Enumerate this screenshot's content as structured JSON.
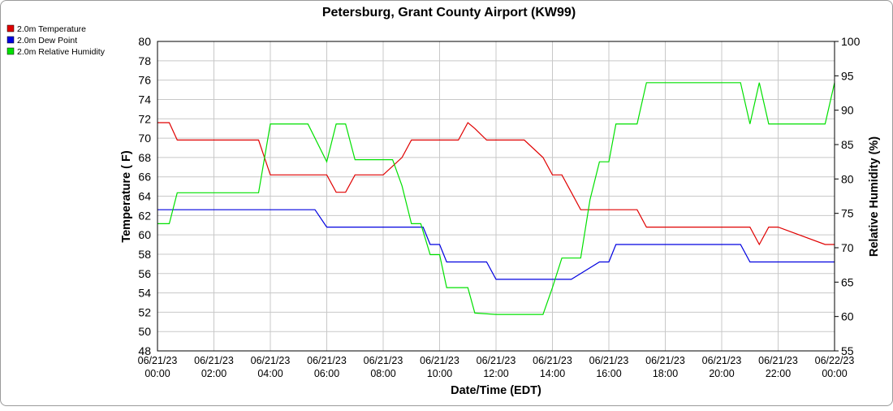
{
  "chart_data": {
    "type": "line",
    "title": "Petersburg, Grant County Airport (KW99)",
    "xlabel": "Date/Time (EDT)",
    "ylabel": "Temperature ( F)",
    "y2label": "Relative Humidity (%)",
    "ylim": [
      48,
      80
    ],
    "y2lim": [
      55,
      100
    ],
    "xlim": [
      "06/21/23 00:00",
      "06/22/23 00:00"
    ],
    "grid": true,
    "legend_position": "top-left",
    "y_ticks": [
      "48",
      "50",
      "52",
      "54",
      "56",
      "58",
      "60",
      "62",
      "64",
      "66",
      "68",
      "70",
      "72",
      "74",
      "76",
      "78",
      "80"
    ],
    "y2_ticks": [
      "55",
      "60",
      "65",
      "70",
      "75",
      "80",
      "85",
      "90",
      "95",
      "100"
    ],
    "x_ticks": [
      {
        "date": "06/21/23",
        "time": "00:00"
      },
      {
        "date": "06/21/23",
        "time": "02:00"
      },
      {
        "date": "06/21/23",
        "time": "04:00"
      },
      {
        "date": "06/21/23",
        "time": "06:00"
      },
      {
        "date": "06/21/23",
        "time": "08:00"
      },
      {
        "date": "06/21/23",
        "time": "10:00"
      },
      {
        "date": "06/21/23",
        "time": "12:00"
      },
      {
        "date": "06/21/23",
        "time": "14:00"
      },
      {
        "date": "06/21/23",
        "time": "16:00"
      },
      {
        "date": "06/21/23",
        "time": "18:00"
      },
      {
        "date": "06/21/23",
        "time": "20:00"
      },
      {
        "date": "06/21/23",
        "time": "22:00"
      },
      {
        "date": "06/22/23",
        "time": "00:00"
      }
    ],
    "series": [
      {
        "name": "2.0m Temperature",
        "color": "#e00000",
        "axis": "left",
        "x": [
          "06/21/23 00:00",
          "06/21/23 00:25",
          "06/21/23 00:42",
          "06/21/23 03:35",
          "06/21/23 04:00",
          "06/21/23 06:00",
          "06/21/23 06:20",
          "06/21/23 06:40",
          "06/21/23 07:00",
          "06/21/23 07:40",
          "06/21/23 08:00",
          "06/21/23 08:40",
          "06/21/23 09:00",
          "06/21/23 10:00",
          "06/21/23 10:40",
          "06/21/23 11:00",
          "06/21/23 11:15",
          "06/21/23 11:40",
          "06/21/23 12:00",
          "06/21/23 13:00",
          "06/21/23 13:40",
          "06/21/23 14:00",
          "06/21/23 14:20",
          "06/21/23 14:40",
          "06/21/23 15:00",
          "06/21/23 15:40",
          "06/21/23 16:00",
          "06/21/23 17:00",
          "06/21/23 17:20",
          "06/21/23 18:00",
          "06/21/23 20:00",
          "06/21/23 21:00",
          "06/21/23 21:20",
          "06/21/23 21:40",
          "06/21/23 22:00",
          "06/21/23 23:40",
          "06/22/23 00:00"
        ],
        "values": [
          71.6,
          71.6,
          69.8,
          69.8,
          66.2,
          66.2,
          64.4,
          64.4,
          66.2,
          66.2,
          66.2,
          68.0,
          69.8,
          69.8,
          69.8,
          71.6,
          71.0,
          69.8,
          69.8,
          69.8,
          68.0,
          66.2,
          66.2,
          64.4,
          62.6,
          62.6,
          62.6,
          62.6,
          60.8,
          60.8,
          60.8,
          60.8,
          59.0,
          60.8,
          60.8,
          59.0,
          59.0
        ]
      },
      {
        "name": "2.0m Dew Point",
        "color": "#0000e0",
        "axis": "left",
        "x": [
          "06/21/23 00:00",
          "06/21/23 05:35",
          "06/21/23 06:00",
          "06/21/23 09:00",
          "06/21/23 09:25",
          "06/21/23 09:40",
          "06/21/23 10:00",
          "06/21/23 10:15",
          "06/21/23 11:00",
          "06/21/23 11:40",
          "06/21/23 12:00",
          "06/21/23 13:00",
          "06/21/23 14:00",
          "06/21/23 14:40",
          "06/21/23 15:00",
          "06/21/23 15:40",
          "06/21/23 16:00",
          "06/21/23 16:15",
          "06/21/23 20:00",
          "06/21/23 20:40",
          "06/21/23 21:00",
          "06/21/23 22:00",
          "06/22/23 00:00"
        ],
        "values": [
          62.6,
          62.6,
          60.8,
          60.8,
          60.8,
          59.0,
          59.0,
          57.2,
          57.2,
          57.2,
          55.4,
          55.4,
          55.4,
          55.4,
          56.0,
          57.2,
          57.2,
          59.0,
          59.0,
          59.0,
          57.2,
          57.2,
          57.2
        ]
      },
      {
        "name": "2.0m Relative Humidity",
        "color": "#00e000",
        "axis": "right",
        "x": [
          "06/21/23 00:00",
          "06/21/23 00:25",
          "06/21/23 00:42",
          "06/21/23 03:35",
          "06/21/23 04:00",
          "06/21/23 05:20",
          "06/21/23 06:00",
          "06/21/23 06:20",
          "06/21/23 06:40",
          "06/21/23 07:00",
          "06/21/23 07:40",
          "06/21/23 08:00",
          "06/21/23 08:20",
          "06/21/23 08:40",
          "06/21/23 09:00",
          "06/21/23 09:20",
          "06/21/23 09:40",
          "06/21/23 10:00",
          "06/21/23 10:15",
          "06/21/23 10:40",
          "06/21/23 11:00",
          "06/21/23 11:15",
          "06/21/23 12:00",
          "06/21/23 13:00",
          "06/21/23 13:40",
          "06/21/23 14:00",
          "06/21/23 14:20",
          "06/21/23 14:40",
          "06/21/23 15:00",
          "06/21/23 15:20",
          "06/21/23 15:40",
          "06/21/23 16:00",
          "06/21/23 16:15",
          "06/21/23 16:40",
          "06/21/23 17:00",
          "06/21/23 17:20",
          "06/21/23 18:00",
          "06/21/23 20:00",
          "06/21/23 20:40",
          "06/21/23 21:00",
          "06/21/23 21:20",
          "06/21/23 21:40",
          "06/21/23 22:00",
          "06/21/23 23:40",
          "06/22/23 00:00"
        ],
        "values": [
          73.5,
          73.5,
          78.0,
          78.0,
          88.0,
          88.0,
          82.5,
          88.0,
          88.0,
          82.8,
          82.8,
          82.8,
          82.8,
          79.0,
          73.5,
          73.5,
          69.0,
          69.0,
          64.2,
          64.2,
          64.2,
          60.5,
          60.3,
          60.3,
          60.3,
          64.2,
          68.5,
          68.5,
          68.5,
          77.0,
          82.5,
          82.5,
          88.0,
          88.0,
          88.0,
          94.0,
          94.0,
          94.0,
          94.0,
          88.0,
          94.0,
          88.0,
          88.0,
          88.0,
          94.0
        ]
      }
    ]
  }
}
